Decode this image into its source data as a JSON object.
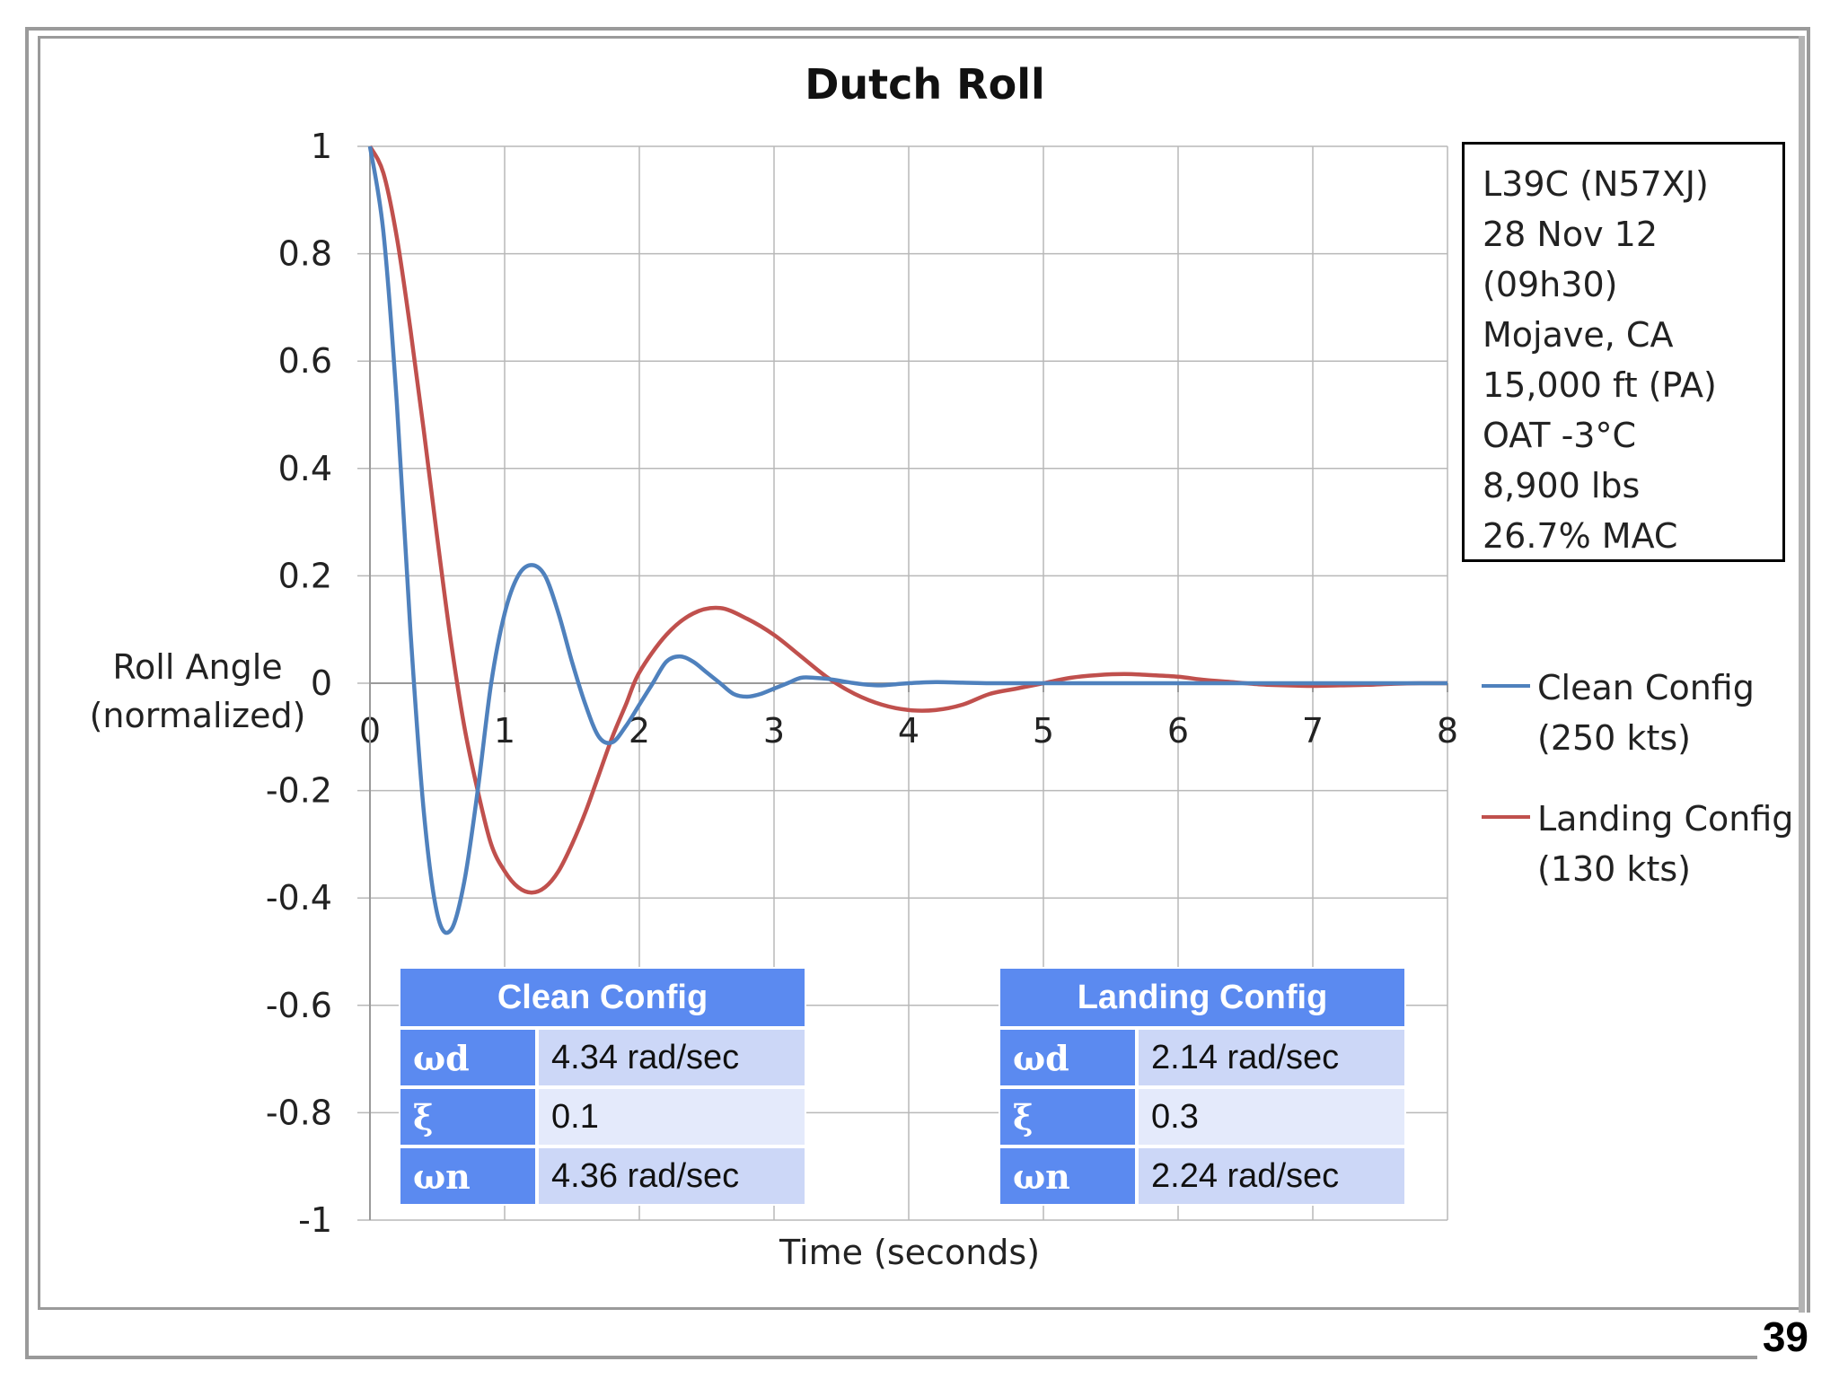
{
  "page_number": "39",
  "chart_data": {
    "type": "line",
    "title": "Dutch Roll",
    "xlabel": "Time (seconds)",
    "ylabel": [
      "Roll Angle",
      "(normalized)"
    ],
    "xlim": [
      0,
      8
    ],
    "ylim": [
      -1,
      1
    ],
    "xticks": [
      "0",
      "1",
      "2",
      "3",
      "4",
      "5",
      "6",
      "7",
      "8"
    ],
    "yticks": [
      "1",
      "0.8",
      "0.6",
      "0.4",
      "0.2",
      "0",
      "-0.2",
      "-0.4",
      "-0.6",
      "-0.8",
      "-1"
    ],
    "grid": true,
    "legend_position": "right",
    "series": [
      {
        "name": [
          "Clean Config",
          "(250 kts)"
        ],
        "color": "#4f81bd",
        "x": [
          0,
          0.1,
          0.2,
          0.3,
          0.4,
          0.5,
          0.6,
          0.7,
          0.8,
          0.9,
          1.0,
          1.1,
          1.2,
          1.3,
          1.4,
          1.5,
          1.6,
          1.7,
          1.8,
          1.9,
          2.0,
          2.1,
          2.2,
          2.3,
          2.4,
          2.5,
          2.6,
          2.7,
          2.8,
          2.9,
          3.0,
          3.1,
          3.2,
          3.3,
          3.4,
          3.5,
          3.6,
          3.7,
          3.8,
          3.9,
          4.0,
          4.2,
          4.4,
          4.6,
          4.8,
          5.0,
          5.2,
          5.4,
          5.6,
          5.8,
          6.0,
          6.5,
          7.0,
          7.5,
          8.0
        ],
        "values": [
          1.0,
          0.84,
          0.52,
          0.1,
          -0.24,
          -0.43,
          -0.46,
          -0.37,
          -0.2,
          0.0,
          0.13,
          0.2,
          0.22,
          0.2,
          0.13,
          0.04,
          -0.04,
          -0.1,
          -0.11,
          -0.08,
          -0.04,
          0.0,
          0.04,
          0.05,
          0.04,
          0.02,
          0.0,
          -0.02,
          -0.025,
          -0.02,
          -0.01,
          0.0,
          0.01,
          0.01,
          0.008,
          0.004,
          0.0,
          -0.003,
          -0.004,
          -0.002,
          0.0,
          0.002,
          0.001,
          0.0,
          0.0,
          0.0,
          0.0,
          0.0,
          0.0,
          0.0,
          0.0,
          0.0,
          0.0,
          0.0,
          0.0
        ]
      },
      {
        "name": [
          "Landing Config",
          "(130 kts)"
        ],
        "color": "#c0504d",
        "x": [
          0,
          0.1,
          0.2,
          0.3,
          0.4,
          0.5,
          0.6,
          0.7,
          0.8,
          0.9,
          1.0,
          1.1,
          1.2,
          1.3,
          1.4,
          1.5,
          1.6,
          1.7,
          1.8,
          1.9,
          2.0,
          2.2,
          2.4,
          2.6,
          2.8,
          3.0,
          3.2,
          3.4,
          3.6,
          3.8,
          4.0,
          4.2,
          4.4,
          4.6,
          4.8,
          5.0,
          5.2,
          5.4,
          5.6,
          5.8,
          6.0,
          6.2,
          6.4,
          6.6,
          6.8,
          7.0,
          7.2,
          7.4,
          7.6,
          7.8,
          8.0
        ],
        "values": [
          1.0,
          0.95,
          0.83,
          0.66,
          0.47,
          0.27,
          0.08,
          -0.08,
          -0.2,
          -0.3,
          -0.35,
          -0.38,
          -0.39,
          -0.38,
          -0.35,
          -0.3,
          -0.24,
          -0.17,
          -0.1,
          -0.04,
          0.02,
          0.09,
          0.13,
          0.14,
          0.12,
          0.09,
          0.05,
          0.01,
          -0.02,
          -0.04,
          -0.05,
          -0.05,
          -0.04,
          -0.02,
          -0.01,
          0.0,
          0.01,
          0.015,
          0.017,
          0.015,
          0.012,
          0.006,
          0.002,
          -0.002,
          -0.004,
          -0.005,
          -0.004,
          -0.003,
          -0.001,
          0.0,
          0.0
        ]
      }
    ]
  },
  "info_box": {
    "lines": [
      "L39C (N57XJ)",
      "28 Nov 12",
      "(09h30)",
      "Mojave, CA",
      "15,000 ft (PA)",
      "OAT -3°C",
      "8,900 lbs",
      "26.7% MAC"
    ]
  },
  "tables": [
    {
      "title": "Clean Config",
      "rows": [
        {
          "symbol": "ωd",
          "value": "4.34 rad/sec"
        },
        {
          "symbol": "ξ",
          "value": "0.1"
        },
        {
          "symbol": "ωn",
          "value": "4.36 rad/sec"
        }
      ]
    },
    {
      "title": "Landing Config",
      "rows": [
        {
          "symbol": "ωd",
          "value": "2.14 rad/sec"
        },
        {
          "symbol": "ξ",
          "value": "0.3"
        },
        {
          "symbol": "ωn",
          "value": "2.24 rad/sec"
        }
      ]
    }
  ]
}
